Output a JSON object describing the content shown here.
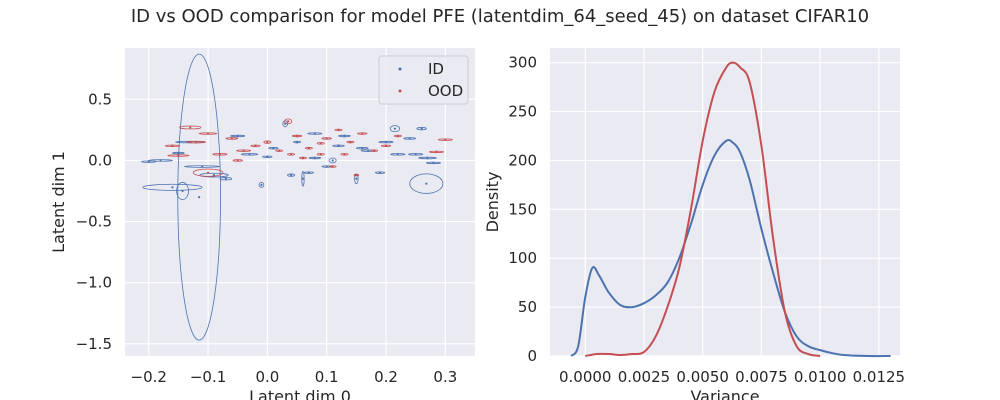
{
  "figure": {
    "title": "ID vs OOD comparison for model PFE (latentdim_64_seed_45) on dataset CIFAR10"
  },
  "colors": {
    "id": "#4c72b0",
    "ood": "#c44e52",
    "panel_bg": "#eaeaf2",
    "grid": "#ffffff"
  },
  "chart_data": [
    {
      "type": "scatter",
      "title": "",
      "xlabel": "Latent dim 0",
      "ylabel": "Latent dim 1",
      "xlim": [
        -0.24,
        0.35
      ],
      "ylim": [
        -1.6,
        0.92
      ],
      "xticks": [
        -0.2,
        -0.1,
        0.0,
        0.1,
        0.2,
        0.3
      ],
      "xtick_labels": [
        "−0.2",
        "−0.1",
        "0.0",
        "0.1",
        "0.2",
        "0.3"
      ],
      "yticks": [
        0.5,
        0.0,
        -0.5,
        -1.0,
        -1.5
      ],
      "ytick_labels": [
        "0.5",
        "0.0",
        "−0.5",
        "−1.0",
        "−1.5"
      ],
      "grid": true,
      "legend": "top-right",
      "series": [
        {
          "name": "ID",
          "color": "#4c72b0",
          "points": [
            {
              "x": -0.115,
              "y": -0.3,
              "sx": 0.036,
              "sy": 1.17
            },
            {
              "x": -0.16,
              "y": -0.22,
              "sx": 0.05,
              "sy": 0.025
            },
            {
              "x": -0.143,
              "y": -0.25,
              "sx": 0.01,
              "sy": 0.07
            },
            {
              "x": 0.268,
              "y": -0.19,
              "sx": 0.028,
              "sy": 0.08
            },
            {
              "x": -0.18,
              "y": 0.0,
              "sx": 0.02,
              "sy": 0.006
            },
            {
              "x": -0.13,
              "y": 0.15,
              "sx": 0.025,
              "sy": 0.006
            },
            {
              "x": -0.11,
              "y": -0.05,
              "sx": 0.03,
              "sy": 0.005
            },
            {
              "x": -0.09,
              "y": -0.12,
              "sx": 0.024,
              "sy": 0.015
            },
            {
              "x": -0.07,
              "y": -0.15,
              "sx": 0.01,
              "sy": 0.01
            },
            {
              "x": -0.05,
              "y": 0.2,
              "sx": 0.012,
              "sy": 0.004
            },
            {
              "x": -0.03,
              "y": 0.05,
              "sx": 0.014,
              "sy": 0.005
            },
            {
              "x": -0.01,
              "y": -0.2,
              "sx": 0.004,
              "sy": 0.02
            },
            {
              "x": 0.01,
              "y": 0.1,
              "sx": 0.008,
              "sy": 0.004
            },
            {
              "x": 0.03,
              "y": 0.3,
              "sx": 0.004,
              "sy": 0.025
            },
            {
              "x": 0.04,
              "y": -0.12,
              "sx": 0.006,
              "sy": 0.01
            },
            {
              "x": 0.06,
              "y": -0.15,
              "sx": 0.002,
              "sy": 0.06
            },
            {
              "x": 0.08,
              "y": 0.02,
              "sx": 0.01,
              "sy": 0.004
            },
            {
              "x": 0.1,
              "y": -0.05,
              "sx": 0.008,
              "sy": 0.006
            },
            {
              "x": 0.12,
              "y": 0.12,
              "sx": 0.01,
              "sy": 0.004
            },
            {
              "x": 0.15,
              "y": -0.15,
              "sx": 0.003,
              "sy": 0.04
            },
            {
              "x": 0.17,
              "y": 0.08,
              "sx": 0.012,
              "sy": 0.005
            },
            {
              "x": 0.19,
              "y": -0.1,
              "sx": 0.008,
              "sy": 0.004
            },
            {
              "x": 0.215,
              "y": 0.26,
              "sx": 0.008,
              "sy": 0.025
            },
            {
              "x": 0.22,
              "y": 0.05,
              "sx": 0.012,
              "sy": 0.004
            },
            {
              "x": 0.24,
              "y": 0.18,
              "sx": 0.01,
              "sy": 0.004
            },
            {
              "x": 0.26,
              "y": 0.26,
              "sx": 0.008,
              "sy": 0.01
            },
            {
              "x": 0.27,
              "y": 0.02,
              "sx": 0.015,
              "sy": 0.004
            },
            {
              "x": 0.28,
              "y": -0.02,
              "sx": 0.012,
              "sy": 0.004
            },
            {
              "x": 0.25,
              "y": 0.05,
              "sx": 0.012,
              "sy": 0.003
            },
            {
              "x": 0.2,
              "y": 0.15,
              "sx": 0.012,
              "sy": 0.004
            },
            {
              "x": 0.13,
              "y": 0.2,
              "sx": 0.01,
              "sy": 0.004
            },
            {
              "x": 0.08,
              "y": 0.22,
              "sx": 0.012,
              "sy": 0.003
            },
            {
              "x": -0.15,
              "y": 0.06,
              "sx": 0.01,
              "sy": 0.004
            },
            {
              "x": -0.2,
              "y": -0.01,
              "sx": 0.012,
              "sy": 0.003
            },
            {
              "x": 0.0,
              "y": 0.03,
              "sx": 0.008,
              "sy": 0.003
            },
            {
              "x": 0.05,
              "y": 0.15,
              "sx": 0.006,
              "sy": 0.004
            },
            {
              "x": 0.11,
              "y": 0.0,
              "sx": 0.006,
              "sy": 0.02
            },
            {
              "x": 0.16,
              "y": 0.1,
              "sx": 0.01,
              "sy": 0.003
            },
            {
              "x": 0.07,
              "y": -0.1,
              "sx": 0.008,
              "sy": 0.004
            }
          ]
        },
        {
          "name": "OOD",
          "color": "#c44e52",
          "points": [
            {
              "x": -0.13,
              "y": 0.27,
              "sx": 0.018,
              "sy": 0.012
            },
            {
              "x": -0.1,
              "y": 0.22,
              "sx": 0.015,
              "sy": 0.004
            },
            {
              "x": -0.12,
              "y": 0.15,
              "sx": 0.016,
              "sy": 0.005
            },
            {
              "x": -0.15,
              "y": 0.04,
              "sx": 0.018,
              "sy": 0.005
            },
            {
              "x": -0.1,
              "y": -0.1,
              "sx": 0.025,
              "sy": 0.03
            },
            {
              "x": -0.08,
              "y": 0.05,
              "sx": 0.012,
              "sy": 0.004
            },
            {
              "x": -0.06,
              "y": 0.18,
              "sx": 0.01,
              "sy": 0.004
            },
            {
              "x": -0.04,
              "y": 0.08,
              "sx": 0.012,
              "sy": 0.004
            },
            {
              "x": -0.02,
              "y": 0.12,
              "sx": 0.008,
              "sy": 0.003
            },
            {
              "x": 0.0,
              "y": 0.15,
              "sx": 0.006,
              "sy": 0.01
            },
            {
              "x": 0.02,
              "y": 0.08,
              "sx": 0.006,
              "sy": 0.004
            },
            {
              "x": 0.035,
              "y": 0.32,
              "sx": 0.006,
              "sy": 0.02
            },
            {
              "x": 0.05,
              "y": 0.2,
              "sx": 0.008,
              "sy": 0.004
            },
            {
              "x": 0.07,
              "y": 0.1,
              "sx": 0.006,
              "sy": 0.004
            },
            {
              "x": 0.09,
              "y": 0.05,
              "sx": 0.006,
              "sy": 0.004
            },
            {
              "x": 0.1,
              "y": 0.18,
              "sx": 0.008,
              "sy": 0.003
            },
            {
              "x": 0.12,
              "y": 0.25,
              "sx": 0.006,
              "sy": 0.004
            },
            {
              "x": 0.14,
              "y": 0.15,
              "sx": 0.006,
              "sy": 0.004
            },
            {
              "x": 0.16,
              "y": 0.22,
              "sx": 0.008,
              "sy": 0.003
            },
            {
              "x": 0.18,
              "y": 0.08,
              "sx": 0.006,
              "sy": 0.004
            },
            {
              "x": 0.2,
              "y": 0.12,
              "sx": 0.008,
              "sy": 0.003
            },
            {
              "x": 0.22,
              "y": 0.2,
              "sx": 0.006,
              "sy": 0.004
            },
            {
              "x": 0.3,
              "y": 0.17,
              "sx": 0.012,
              "sy": 0.004
            },
            {
              "x": 0.285,
              "y": 0.07,
              "sx": 0.012,
              "sy": 0.004
            },
            {
              "x": 0.06,
              "y": 0.02,
              "sx": 0.006,
              "sy": 0.003
            },
            {
              "x": 0.11,
              "y": -0.05,
              "sx": 0.006,
              "sy": 0.003
            },
            {
              "x": 0.15,
              "y": -0.12,
              "sx": 0.004,
              "sy": 0.004
            },
            {
              "x": -0.16,
              "y": 0.12,
              "sx": 0.012,
              "sy": 0.003
            },
            {
              "x": 0.04,
              "y": 0.05,
              "sx": 0.006,
              "sy": 0.003
            },
            {
              "x": 0.09,
              "y": 0.14,
              "sx": 0.006,
              "sy": 0.003
            },
            {
              "x": -0.05,
              "y": 0.0,
              "sx": 0.008,
              "sy": 0.003
            },
            {
              "x": 0.13,
              "y": 0.05,
              "sx": 0.006,
              "sy": 0.003
            }
          ]
        }
      ]
    },
    {
      "type": "line",
      "title": "",
      "xlabel": "Variance",
      "ylabel": "Density",
      "xlim": [
        -0.0015,
        0.0134
      ],
      "ylim": [
        0,
        315
      ],
      "xticks": [
        0.0,
        0.0025,
        0.005,
        0.0075,
        0.01,
        0.0125
      ],
      "xtick_labels": [
        "0.0000",
        "0.0025",
        "0.0050",
        "0.0075",
        "0.0100",
        "0.0125"
      ],
      "yticks": [
        0,
        50,
        100,
        150,
        200,
        250,
        300
      ],
      "ytick_labels": [
        "0",
        "50",
        "100",
        "150",
        "200",
        "250",
        "300"
      ],
      "grid": true,
      "legend": "none",
      "series": [
        {
          "name": "ID",
          "color": "#4c72b0",
          "x": [
            -0.0006,
            -0.0003,
            0.0,
            0.0003,
            0.0006,
            0.001,
            0.0015,
            0.002,
            0.0025,
            0.003,
            0.0035,
            0.004,
            0.0045,
            0.005,
            0.0055,
            0.006,
            0.0063,
            0.0066,
            0.007,
            0.0075,
            0.008,
            0.0085,
            0.009,
            0.0095,
            0.01,
            0.0105,
            0.011,
            0.012,
            0.013
          ],
          "y": [
            0,
            10,
            60,
            90,
            82,
            65,
            52,
            50,
            54,
            62,
            75,
            100,
            135,
            175,
            205,
            220,
            218,
            208,
            180,
            130,
            85,
            45,
            20,
            10,
            6,
            3,
            1,
            0,
            0
          ]
        },
        {
          "name": "OOD",
          "color": "#c44e52",
          "x": [
            0.0,
            0.0005,
            0.001,
            0.0015,
            0.002,
            0.0025,
            0.003,
            0.0035,
            0.004,
            0.0045,
            0.005,
            0.0055,
            0.006,
            0.0063,
            0.0066,
            0.007,
            0.0075,
            0.008,
            0.0085,
            0.009,
            0.0095,
            0.01
          ],
          "y": [
            0,
            2,
            2,
            1,
            2,
            4,
            20,
            50,
            90,
            150,
            220,
            270,
            295,
            300,
            295,
            280,
            215,
            120,
            45,
            10,
            2,
            0
          ]
        }
      ]
    }
  ]
}
